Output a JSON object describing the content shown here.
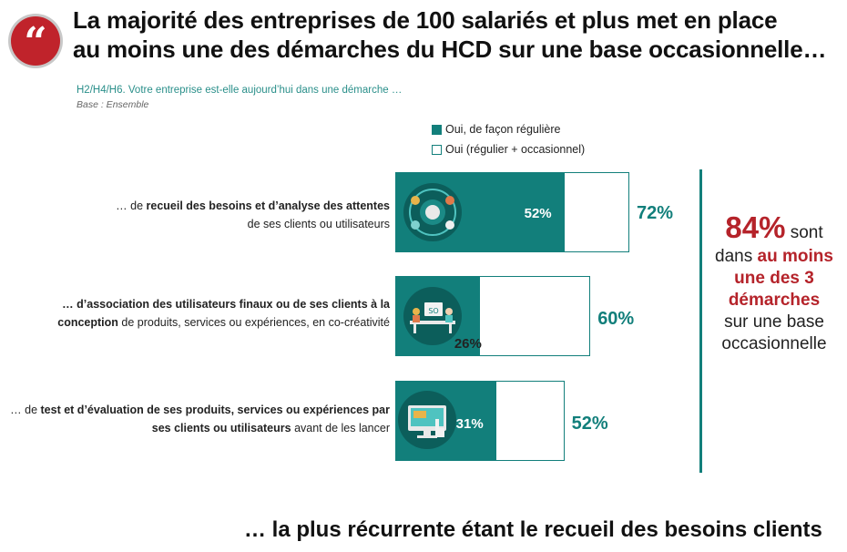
{
  "header": {
    "title_line1": "La majorité des entreprises de 100 salariés et plus met en place",
    "title_line2": "au moins une des démarches du HCD sur une base occasionnelle…",
    "quote_icon": "quote-mark-icon"
  },
  "subtitle": "H2/H4/H6. Votre entreprise est-elle aujourd’hui dans une démarche …",
  "base_note": "Base : Ensemble",
  "legend": {
    "regular": "Oui, de façon régulière",
    "total": "Oui (régulier + occasionnel)"
  },
  "rows": [
    {
      "label_pre": "… de ",
      "label_bold": "recueil des besoins et d’analyse des attentes",
      "label_line2": "de ses clients ou utilisateurs",
      "regular_text": "52%",
      "total_text": "72%",
      "icon": "needs-analysis-icon"
    },
    {
      "label_bold1": "… d’association des utilisateurs finaux ou de ses clients à la",
      "label_bold2": "conception",
      "label_rest": " de produits, services ou expériences, en co-créativité",
      "regular_text": "26%",
      "total_text": "60%",
      "icon": "co-creation-icon"
    },
    {
      "label_pre": "… de ",
      "label_bold": "test et d’évaluation de ses produits, services ou expériences par",
      "label_bold2": "ses clients ou utilisateurs",
      "label_rest": " avant de les lancer",
      "regular_text": "31%",
      "total_text": "52%",
      "icon": "testing-screen-icon"
    }
  ],
  "side_callout": {
    "big": "84%",
    "after_big": " sont",
    "dans": "dans ",
    "red_text": "au moins une des 3 démarches",
    "rest": "sur une base occasionnelle"
  },
  "footer": "… la plus récurrente étant le recueil des besoins clients",
  "colors": {
    "teal": "#127f7b",
    "red": "#b5232a"
  },
  "chart_data": {
    "type": "bar",
    "orientation": "horizontal",
    "categories": [
      "… de recueil des besoins et d’analyse des attentes de ses clients ou utilisateurs",
      "… d’association des utilisateurs finaux ou de ses clients à la conception de produits, services ou expériences, en co-créativité",
      "… de test et d’évaluation de ses produits, services ou expériences par ses clients ou utilisateurs avant de les lancer"
    ],
    "series": [
      {
        "name": "Oui, de façon régulière",
        "values": [
          52,
          26,
          31
        ]
      },
      {
        "name": "Oui (régulier + occasionnel)",
        "values": [
          72,
          60,
          52
        ]
      }
    ],
    "unit": "%",
    "legend_position": "top",
    "grid": false
  }
}
